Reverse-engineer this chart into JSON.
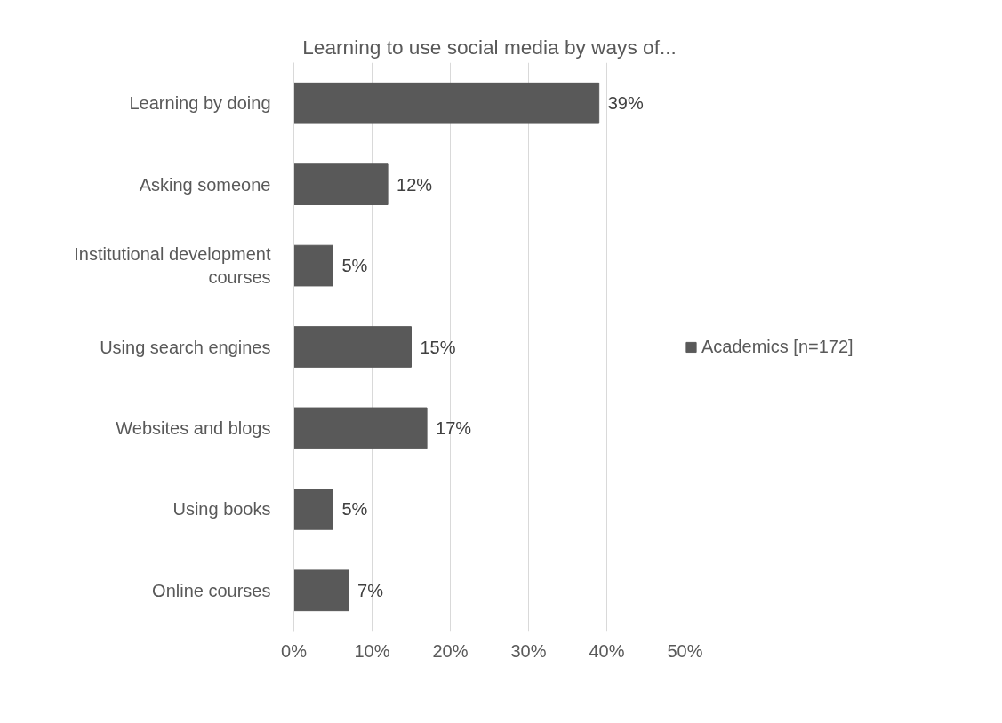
{
  "chart_data": {
    "type": "bar",
    "orientation": "horizontal",
    "title": "Learning to use social media by ways of...",
    "categories": [
      "Learning by doing",
      "Asking someone",
      "Institutional development courses",
      "Using search engines",
      "Websites and blogs",
      "Using books",
      "Online courses"
    ],
    "series": [
      {
        "name": "Academics [n=172]",
        "color": "#595959",
        "values": [
          39,
          12,
          5,
          15,
          17,
          5,
          7
        ],
        "value_labels": [
          "39%",
          "12%",
          "5%",
          "15%",
          "17%",
          "5%",
          "7%"
        ]
      }
    ],
    "xlim": [
      0,
      50
    ],
    "xticks": [
      {
        "value": 0,
        "label": "0%"
      },
      {
        "value": 10,
        "label": "10%"
      },
      {
        "value": 20,
        "label": "20%"
      },
      {
        "value": 30,
        "label": "30%"
      },
      {
        "value": 40,
        "label": "40%"
      },
      {
        "value": 50,
        "label": "50%"
      }
    ],
    "grid": "x",
    "legend": "right"
  }
}
